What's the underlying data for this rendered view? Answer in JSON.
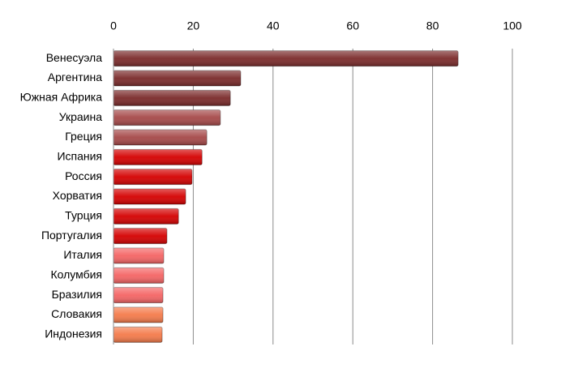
{
  "chart_data": {
    "type": "bar",
    "orientation": "horizontal",
    "categories": [
      "Венесуэла",
      "Аргентина",
      "Южная Африка",
      "Украина",
      "Греция",
      "Испания",
      "Россия",
      "Хорватия",
      "Турция",
      "Португалия",
      "Италия",
      "Колумбия",
      "Бразилия",
      "Словакия",
      "Индонезия"
    ],
    "values": [
      86.4,
      31.9,
      29.3,
      26.8,
      23.4,
      22.2,
      19.7,
      18.1,
      16.3,
      13.4,
      12.6,
      12.6,
      12.4,
      12.4,
      12.2
    ],
    "colors": [
      "#7a2a2a",
      "#7a2a2a",
      "#7a2a2a",
      "#a54848",
      "#a54848",
      "#d40000",
      "#d40000",
      "#d40000",
      "#d40000",
      "#d40000",
      "#f46464",
      "#f46464",
      "#f46464",
      "#f47a4a",
      "#f47a4a"
    ],
    "xlim": [
      0,
      100
    ],
    "xticks": [
      0,
      20,
      40,
      60,
      80,
      100
    ],
    "grid": true
  }
}
